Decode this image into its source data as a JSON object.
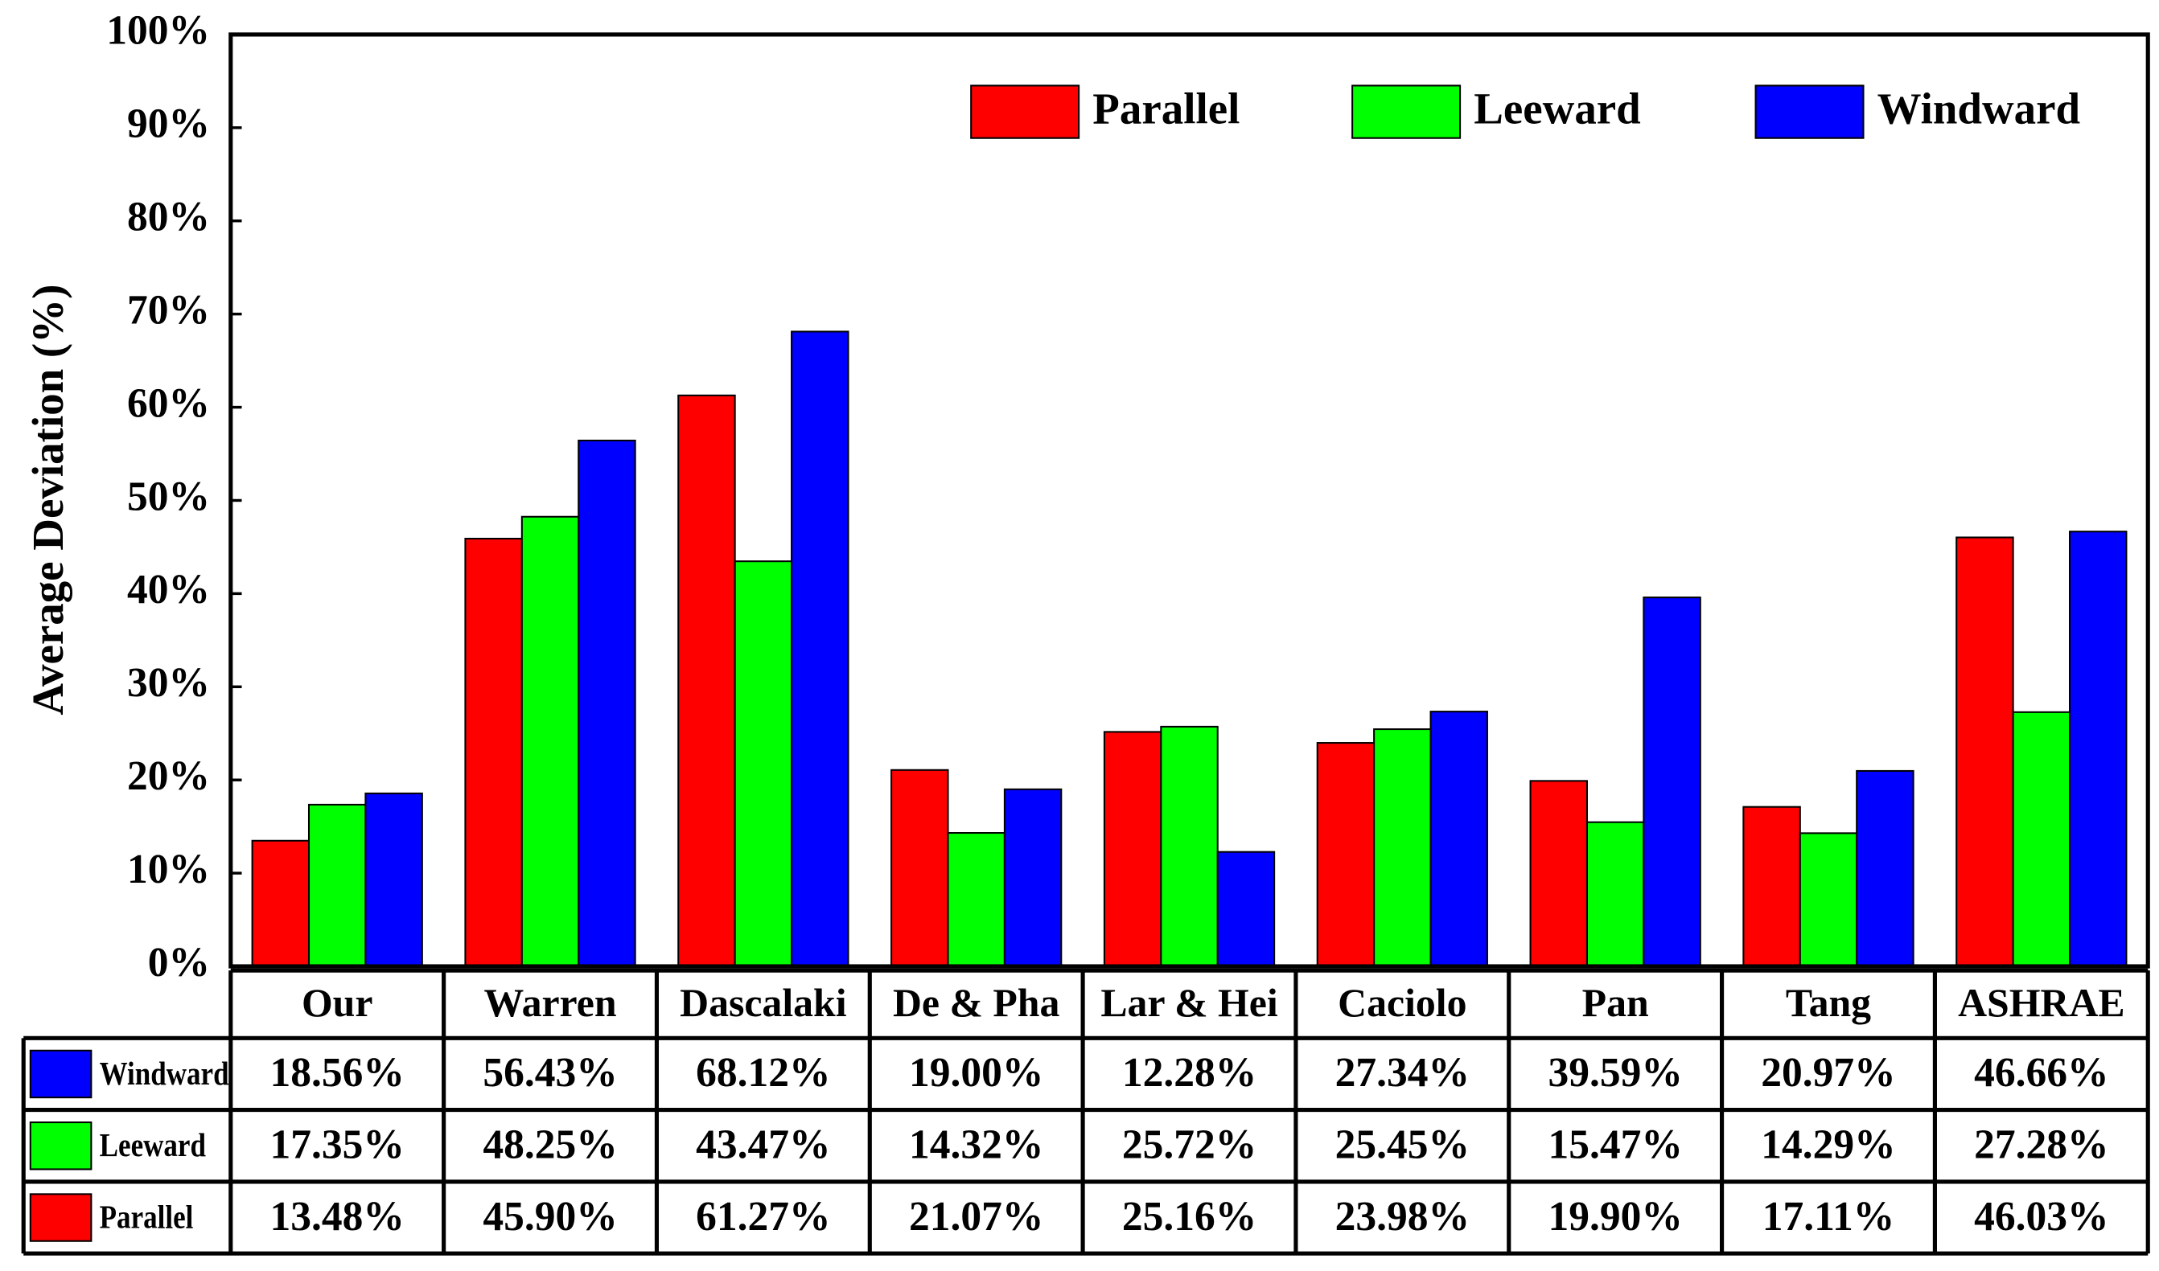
{
  "chart_data": {
    "type": "bar",
    "y_label": "Average Deviation (%)",
    "categories": [
      "Our",
      "Warren",
      "Dascalaki",
      "De & Pha",
      "Lar & Hei",
      "Caciolo",
      "Pan",
      "Tang",
      "ASHRAE"
    ],
    "series": [
      {
        "name": "Parallel",
        "color": "#ff0000",
        "values": [
          13.48,
          45.9,
          61.27,
          21.07,
          25.16,
          23.98,
          19.9,
          17.11,
          46.03
        ],
        "value_labels": [
          "13.48%",
          "45.90%",
          "61.27%",
          "21.07%",
          "25.16%",
          "23.98%",
          "19.90%",
          "17.11%",
          "46.03%"
        ]
      },
      {
        "name": "Leeward",
        "color": "#00ff00",
        "values": [
          17.35,
          48.25,
          43.47,
          14.32,
          25.72,
          25.45,
          15.47,
          14.29,
          27.28
        ],
        "value_labels": [
          "17.35%",
          "48.25%",
          "43.47%",
          "14.32%",
          "25.72%",
          "25.45%",
          "15.47%",
          "14.29%",
          "27.28%"
        ]
      },
      {
        "name": "Windward",
        "color": "#0000ff",
        "values": [
          18.56,
          56.43,
          68.12,
          19.0,
          12.28,
          27.34,
          39.59,
          20.97,
          46.66
        ],
        "value_labels": [
          "18.56%",
          "56.43%",
          "68.12%",
          "19.00%",
          "12.28%",
          "27.34%",
          "39.59%",
          "20.97%",
          "46.66%"
        ]
      }
    ],
    "ylim": [
      0,
      100
    ],
    "yticks": [
      {
        "value": 0,
        "label": "0%"
      },
      {
        "value": 10,
        "label": "10%"
      },
      {
        "value": 20,
        "label": "20%"
      },
      {
        "value": 30,
        "label": "30%"
      },
      {
        "value": 40,
        "label": "40%"
      },
      {
        "value": 50,
        "label": "50%"
      },
      {
        "value": 60,
        "label": "60%"
      },
      {
        "value": 70,
        "label": "70%"
      },
      {
        "value": 80,
        "label": "80%"
      },
      {
        "value": 90,
        "label": "90%"
      },
      {
        "value": 100,
        "label": "100%"
      }
    ],
    "legend": "top-right"
  }
}
